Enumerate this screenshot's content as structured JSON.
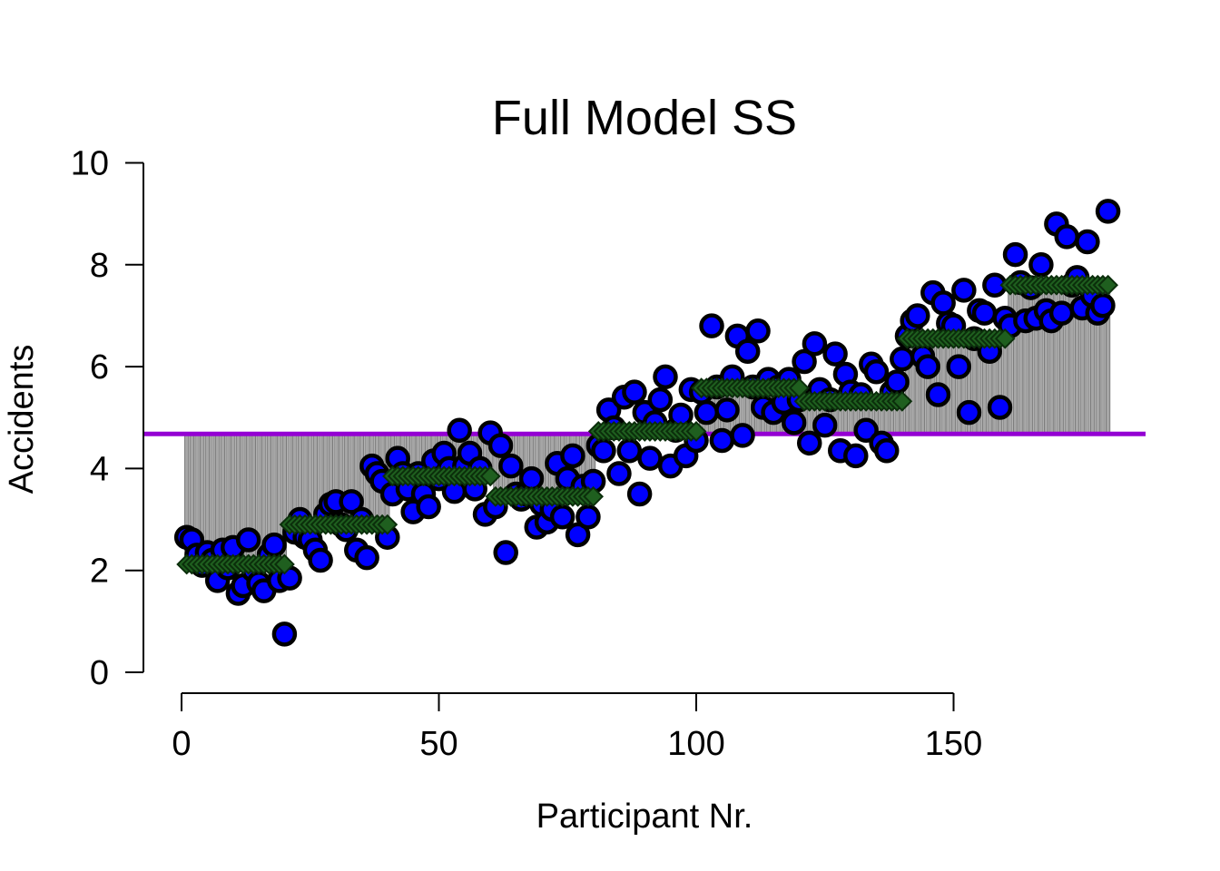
{
  "chart_data": {
    "type": "scatter",
    "title": "Full Model SS",
    "xlabel": "Participant Nr.",
    "ylabel": "Accidents",
    "xlim": [
      0,
      187
    ],
    "ylim": [
      0,
      10
    ],
    "x_ticks": [
      0,
      50,
      100,
      150
    ],
    "y_ticks": [
      0,
      2,
      4,
      6,
      8,
      10
    ],
    "grand_mean": 4.68,
    "colors": {
      "observed_fill": "#0000ff",
      "observed_edge": "#000000",
      "fitted_fill": "#1f5f1f",
      "fitted_edge": "#0b2e0b",
      "mean_line": "#9400d3",
      "squares": "#a6a6a6",
      "square_lines": "#707070"
    },
    "group_means": [
      {
        "from": 1,
        "to": 20,
        "value": 2.12
      },
      {
        "from": 21,
        "to": 40,
        "value": 2.9
      },
      {
        "from": 41,
        "to": 60,
        "value": 3.85
      },
      {
        "from": 61,
        "to": 80,
        "value": 3.45
      },
      {
        "from": 81,
        "to": 100,
        "value": 4.73
      },
      {
        "from": 101,
        "to": 120,
        "value": 5.58
      },
      {
        "from": 121,
        "to": 140,
        "value": 5.32
      },
      {
        "from": 141,
        "to": 160,
        "value": 6.55
      },
      {
        "from": 161,
        "to": 180,
        "value": 7.6
      }
    ],
    "observed": {
      "x": [
        1,
        2,
        3,
        4,
        5,
        6,
        7,
        8,
        9,
        10,
        11,
        12,
        13,
        14,
        15,
        16,
        17,
        18,
        19,
        20,
        21,
        22,
        23,
        24,
        25,
        26,
        27,
        28,
        29,
        30,
        31,
        32,
        33,
        34,
        35,
        36,
        37,
        38,
        39,
        40,
        41,
        42,
        43,
        44,
        45,
        46,
        47,
        48,
        49,
        50,
        51,
        52,
        53,
        54,
        55,
        56,
        57,
        58,
        59,
        60,
        61,
        62,
        63,
        64,
        65,
        66,
        67,
        68,
        69,
        70,
        71,
        72,
        73,
        74,
        75,
        76,
        77,
        78,
        79,
        80,
        81,
        82,
        83,
        84,
        85,
        86,
        87,
        88,
        89,
        90,
        91,
        92,
        93,
        94,
        95,
        96,
        97,
        98,
        99,
        100,
        101,
        102,
        103,
        104,
        105,
        106,
        107,
        108,
        109,
        110,
        111,
        112,
        113,
        114,
        115,
        116,
        117,
        118,
        119,
        120,
        121,
        122,
        123,
        124,
        125,
        126,
        127,
        128,
        129,
        130,
        131,
        132,
        133,
        134,
        135,
        136,
        137,
        138,
        139,
        140,
        141,
        142,
        143,
        144,
        145,
        146,
        147,
        148,
        149,
        150,
        151,
        152,
        153,
        154,
        155,
        156,
        157,
        158,
        159,
        160,
        161,
        162,
        163,
        164,
        165,
        166,
        167,
        168,
        169,
        170,
        171,
        172,
        173,
        174,
        175,
        176,
        177,
        178,
        179,
        180
      ],
      "y": [
        2.65,
        2.6,
        2.3,
        2.1,
        2.35,
        2.2,
        1.8,
        2.4,
        2.05,
        2.45,
        1.55,
        1.7,
        2.6,
        2.0,
        1.75,
        1.6,
        2.3,
        2.5,
        1.8,
        0.75,
        1.85,
        2.75,
        3.0,
        2.65,
        2.6,
        2.4,
        2.2,
        3.1,
        3.3,
        3.35,
        2.9,
        2.8,
        3.35,
        2.4,
        3.0,
        2.25,
        4.05,
        3.9,
        3.75,
        2.65,
        3.5,
        4.2,
        3.9,
        3.6,
        3.15,
        3.9,
        3.5,
        3.25,
        4.15,
        3.8,
        4.3,
        4.0,
        3.55,
        4.75,
        4.05,
        4.3,
        3.6,
        4.0,
        3.1,
        4.7,
        3.25,
        4.45,
        2.35,
        4.05,
        3.5,
        3.4,
        3.5,
        3.8,
        2.85,
        3.3,
        2.95,
        3.2,
        4.1,
        3.05,
        3.8,
        4.25,
        2.7,
        3.65,
        3.05,
        3.75,
        4.45,
        4.35,
        5.15,
        4.8,
        3.9,
        5.4,
        4.35,
        5.5,
        3.5,
        5.1,
        4.2,
        4.9,
        5.35,
        5.8,
        4.05,
        4.75,
        5.05,
        4.25,
        5.55,
        4.55,
        5.5,
        5.1,
        6.8,
        5.6,
        4.55,
        5.15,
        5.8,
        6.6,
        4.65,
        6.3,
        5.6,
        6.7,
        5.2,
        5.75,
        5.1,
        5.6,
        5.3,
        5.75,
        4.9,
        5.35,
        6.1,
        4.5,
        6.45,
        5.55,
        4.85,
        5.35,
        6.25,
        4.35,
        5.85,
        5.5,
        4.25,
        5.45,
        4.75,
        6.05,
        5.9,
        4.5,
        4.35,
        5.5,
        5.7,
        6.15,
        6.6,
        6.9,
        7.0,
        6.2,
        6.0,
        7.45,
        5.45,
        7.25,
        6.85,
        6.8,
        6.0,
        7.5,
        5.1,
        6.55,
        7.1,
        7.05,
        6.3,
        7.6,
        5.2,
        6.95,
        6.8,
        8.2,
        7.65,
        6.9,
        7.55,
        6.95,
        8.0,
        7.1,
        6.9,
        8.8,
        7.05,
        8.55,
        7.6,
        7.75,
        7.15,
        8.45,
        7.4,
        7.05,
        7.2,
        9.05
      ]
    }
  }
}
